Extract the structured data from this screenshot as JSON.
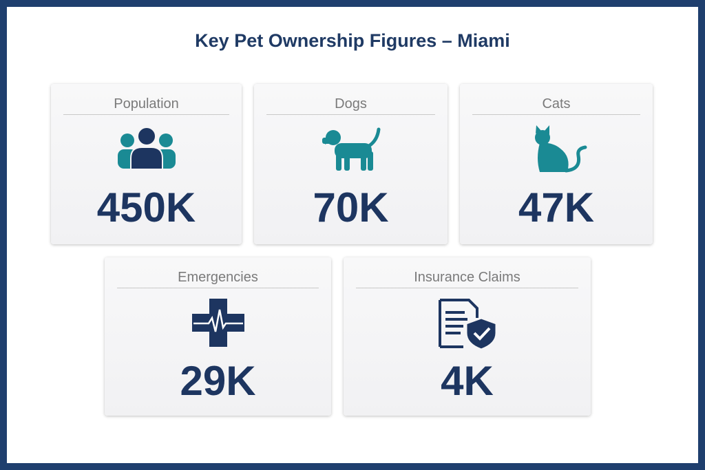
{
  "header": {
    "title": "Key Pet Ownership Figures – Miami"
  },
  "cards": [
    {
      "label": "Population",
      "value": "450K"
    },
    {
      "label": "Dogs",
      "value": "70K"
    },
    {
      "label": "Cats",
      "value": "47K"
    },
    {
      "label": "Emergencies",
      "value": "29K"
    },
    {
      "label": "Insurance Claims",
      "value": "4K"
    }
  ]
}
